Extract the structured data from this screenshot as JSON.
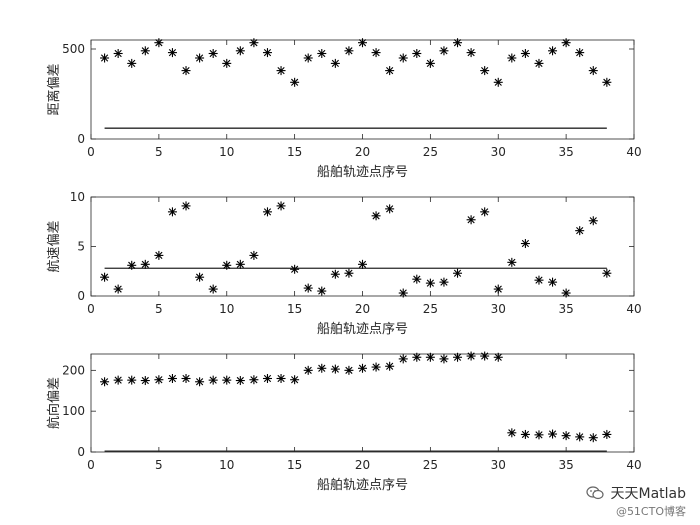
{
  "chart_data": [
    {
      "type": "scatter",
      "xlabel": "船舶轨迹点序号",
      "ylabel": "距离偏差",
      "xlim": [
        0,
        40
      ],
      "ylim": [
        0,
        550
      ],
      "xticks": [
        "0",
        "5",
        "10",
        "15",
        "20",
        "25",
        "30",
        "35",
        "40"
      ],
      "yticks": [
        {
          "value": 0,
          "label": "0"
        },
        {
          "value": 500,
          "label": "500"
        }
      ],
      "marker": "*",
      "x": [
        1,
        2,
        3,
        4,
        5,
        6,
        7,
        8,
        9,
        10,
        11,
        12,
        13,
        14,
        15,
        16,
        17,
        18,
        19,
        20,
        21,
        22,
        23,
        24,
        25,
        26,
        27,
        28,
        29,
        30,
        31,
        32,
        33,
        34,
        35,
        36,
        37,
        38
      ],
      "values": [
        450,
        475,
        420,
        490,
        535,
        480,
        380,
        450,
        475,
        420,
        490,
        535,
        480,
        380,
        315,
        450,
        475,
        420,
        490,
        535,
        480,
        380,
        450,
        475,
        420,
        490,
        535,
        480,
        380,
        315,
        450,
        475,
        420,
        490,
        535,
        480,
        380,
        315
      ],
      "reference_line": 60
    },
    {
      "type": "scatter",
      "xlabel": "船舶轨迹点序号",
      "ylabel": "航速偏差",
      "xlim": [
        0,
        40
      ],
      "ylim": [
        0,
        10
      ],
      "xticks": [
        "0",
        "5",
        "10",
        "15",
        "20",
        "25",
        "30",
        "35",
        "40"
      ],
      "yticks": [
        {
          "value": 0,
          "label": "0"
        },
        {
          "value": 5,
          "label": "5"
        },
        {
          "value": 10,
          "label": "10"
        }
      ],
      "marker": "*",
      "x": [
        1,
        2,
        3,
        4,
        5,
        6,
        7,
        8,
        9,
        10,
        11,
        12,
        13,
        14,
        15,
        16,
        17,
        18,
        19,
        20,
        21,
        22,
        23,
        24,
        25,
        26,
        27,
        28,
        29,
        30,
        31,
        32,
        33,
        34,
        35,
        36,
        37,
        38
      ],
      "values": [
        1.9,
        0.7,
        3.1,
        3.2,
        4.1,
        8.5,
        9.1,
        1.9,
        0.7,
        3.1,
        3.2,
        4.1,
        8.5,
        9.1,
        2.7,
        0.8,
        0.5,
        2.2,
        2.3,
        3.2,
        8.1,
        8.8,
        0.3,
        1.7,
        1.3,
        1.4,
        2.3,
        7.7,
        8.5,
        0.7,
        3.4,
        5.3,
        1.6,
        1.4,
        0.3,
        6.6,
        7.6,
        2.3
      ],
      "reference_line": 2.8
    },
    {
      "type": "scatter",
      "xlabel": "船舶轨迹点序号",
      "ylabel": "航向偏差",
      "xlim": [
        0,
        40
      ],
      "ylim": [
        0,
        240
      ],
      "xticks": [
        "0",
        "5",
        "10",
        "15",
        "20",
        "25",
        "30",
        "35",
        "40"
      ],
      "yticks": [
        {
          "value": 0,
          "label": "0"
        },
        {
          "value": 100,
          "label": "100"
        },
        {
          "value": 200,
          "label": "200"
        }
      ],
      "marker": "*",
      "x": [
        1,
        2,
        3,
        4,
        5,
        6,
        7,
        8,
        9,
        10,
        11,
        12,
        13,
        14,
        15,
        16,
        17,
        18,
        19,
        20,
        21,
        22,
        23,
        24,
        25,
        26,
        27,
        28,
        29,
        30,
        31,
        32,
        33,
        34,
        35,
        36,
        37,
        38
      ],
      "values": [
        172,
        176,
        176,
        175,
        177,
        180,
        180,
        172,
        176,
        176,
        175,
        177,
        180,
        180,
        177,
        200,
        205,
        203,
        200,
        205,
        208,
        210,
        228,
        232,
        232,
        228,
        232,
        235,
        235,
        232,
        47,
        43,
        42,
        44,
        40,
        37,
        35,
        43
      ],
      "reference_line": 2
    }
  ],
  "watermark": {
    "title": "天天Matlab",
    "subtitle": "@51CTO博客",
    "icon": "wechat-icon"
  }
}
